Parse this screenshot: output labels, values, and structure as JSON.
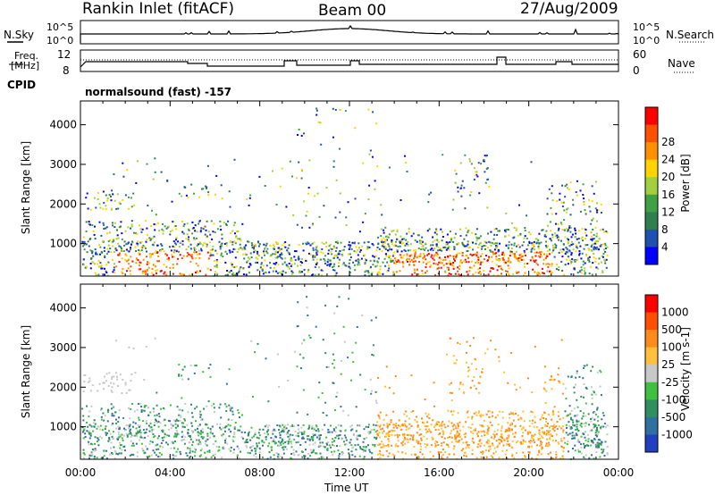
{
  "header": {
    "station": "Rankin Inlet (fitACF)",
    "beam": "Beam 00",
    "date": "27/Aug/2009"
  },
  "sky_panel": {
    "left_label": "N.Sky",
    "right_label": "N.Search",
    "ticks_top": "10^5",
    "ticks_bottom": "10^0"
  },
  "freq_panel": {
    "left_label_1": "Freq.",
    "left_label_2": "[MHz]",
    "left_tick_top": "12",
    "left_tick_bottom": "8",
    "right_tick_top": "60",
    "right_tick_bottom": "0",
    "right_label": "Nave"
  },
  "cpid": {
    "label": "CPID",
    "program": "normalsound (fast) -157"
  },
  "chart_data": [
    {
      "type": "heatmap",
      "title": "",
      "xlabel": "",
      "ylabel": "Slant Range [km]",
      "x_ticks": [
        "00:00",
        "04:00",
        "08:00",
        "12:00",
        "16:00",
        "20:00",
        "00:00"
      ],
      "y_ticks": [
        "1000",
        "2000",
        "3000",
        "4000"
      ],
      "ylim": [
        180,
        4600
      ],
      "colorbar_label": "Power [dB]",
      "colorbar_ticks": [
        "4",
        "8",
        "12",
        "16",
        "20",
        "24",
        "28"
      ],
      "colors": [
        "#0000ff",
        "#2050b0",
        "#2f7f4f",
        "#3fa044",
        "#a0d040",
        "#ffd400",
        "#ff9000",
        "#ff5000",
        "#ff0000"
      ]
    },
    {
      "type": "heatmap",
      "title": "",
      "xlabel": "Time UT",
      "ylabel": "Slant Range [km]",
      "x_ticks": [
        "00:00",
        "04:00",
        "08:00",
        "12:00",
        "16:00",
        "20:00",
        "00:00"
      ],
      "y_ticks": [
        "1000",
        "2000",
        "3000",
        "4000"
      ],
      "ylim": [
        180,
        4600
      ],
      "colorbar_label": "Velocity [m s-1]",
      "colorbar_ticks": [
        "1000",
        "500",
        "100",
        "25",
        "-25",
        "-100",
        "-500",
        "-1000"
      ],
      "colors": [
        "#2040c0",
        "#3070a0",
        "#2f8f5f",
        "#40c040",
        "#c8c8c8",
        "#ffc040",
        "#ff8c1a",
        "#ff5000",
        "#ff0000"
      ]
    }
  ]
}
